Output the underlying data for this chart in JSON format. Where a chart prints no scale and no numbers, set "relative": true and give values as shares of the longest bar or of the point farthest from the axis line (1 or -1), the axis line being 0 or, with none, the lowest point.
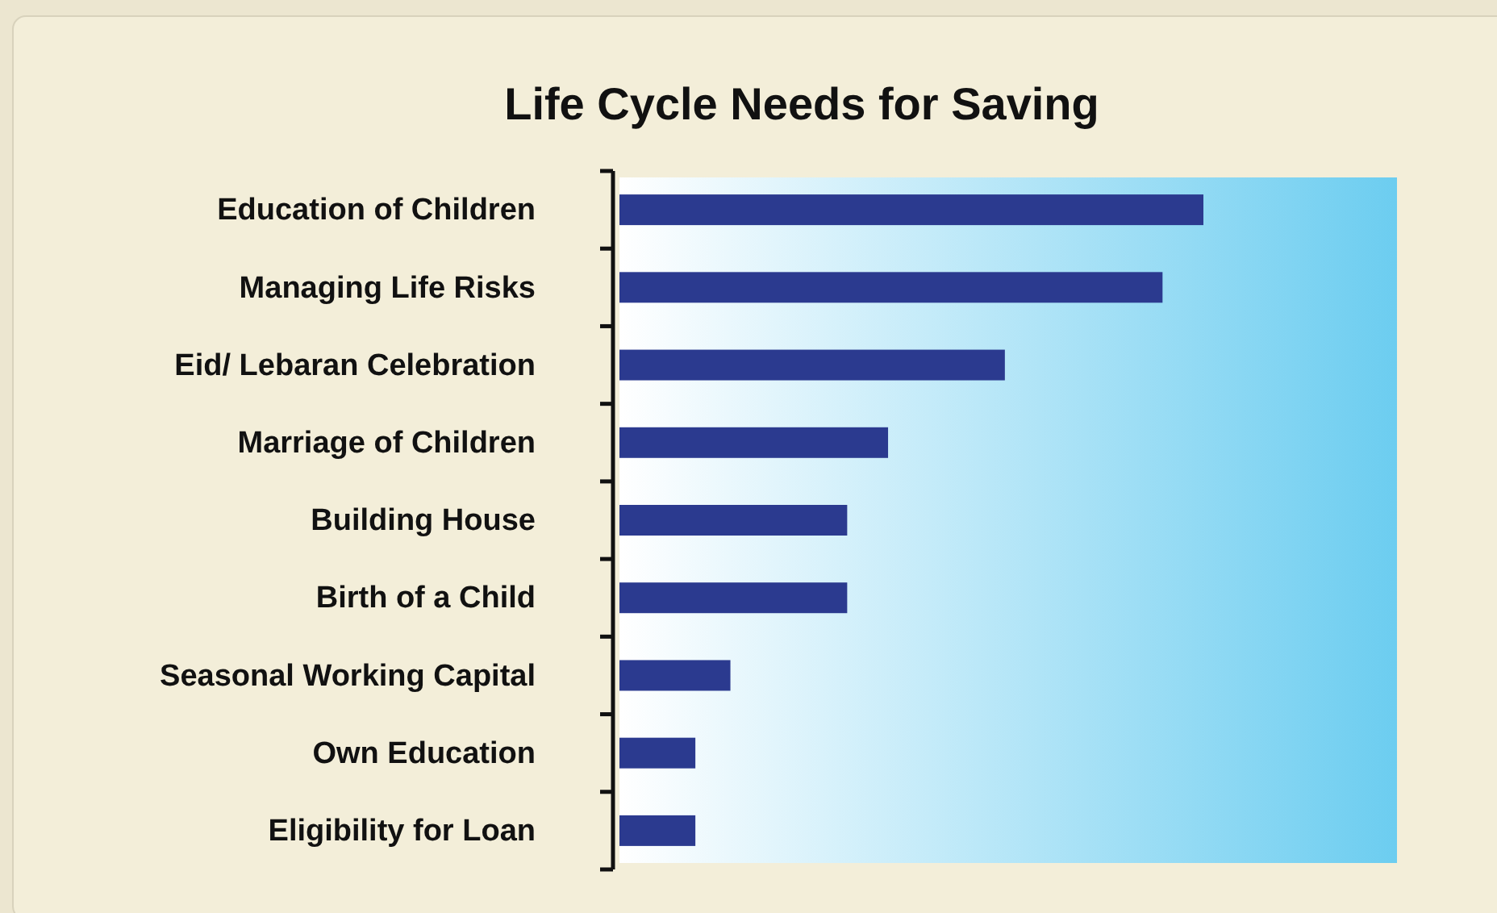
{
  "chart_data": {
    "type": "bar",
    "orientation": "horizontal",
    "relative": true,
    "title": "Life Cycle Needs for Saving",
    "categories": [
      "Education of Children",
      "Managing Life Risks",
      "Eid/ Lebaran Celebration",
      "Marriage of Children",
      "Building House",
      "Birth of a Child",
      "Seasonal Working Capital",
      "Own Education",
      "Eligibility for Loan"
    ],
    "values": [
      1,
      0.93,
      0.66,
      0.46,
      0.39,
      0.39,
      0.19,
      0.13,
      0.13
    ],
    "color": "#2b3a8f"
  }
}
